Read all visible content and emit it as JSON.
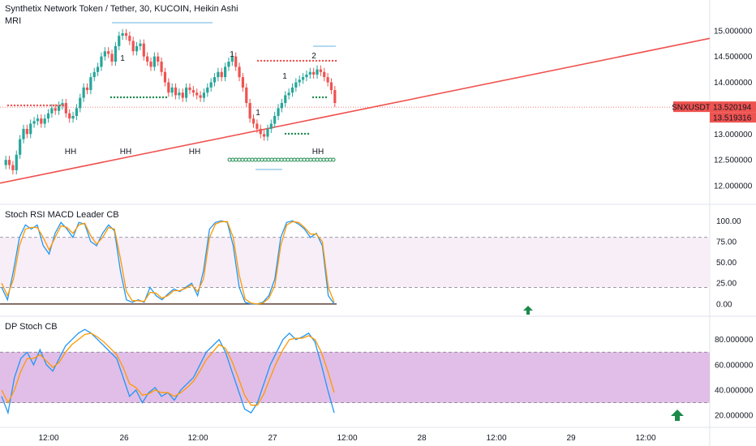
{
  "header": {
    "title": "Synthetix Network Token / Tether, 30, KUCOIN, Heikin Ashi",
    "indicator": "MRI"
  },
  "colors": {
    "up": "#26a69a",
    "down": "#ef5350",
    "trendline": "#ef5350",
    "rsi_k": "#2196f3",
    "rsi_d": "#ff9800",
    "dp_band": "#e1bee7",
    "arrow": "#1b8a4b",
    "marker_red": "#ef5350",
    "marker_green": "#1b8a4b",
    "light_blue": "#b3d9f2"
  },
  "chart_data": [
    {
      "type": "candlestick",
      "title": "Synthetix Network Token / Tether, 30, KUCOIN, Heikin Ashi",
      "symbol": "SNXUSDT",
      "ylim": [
        11.75,
        15.2
      ],
      "yticks": [
        "15.000000",
        "14.500000",
        "14.000000",
        "13.500000",
        "13.000000",
        "12.500000",
        "12.000000"
      ],
      "price_tag": "13.520194",
      "price_tag2": "13.519316",
      "price_value": 13.52,
      "trendline": {
        "start": 12.05,
        "end": 14.85
      },
      "labels": [
        "HH",
        "HH",
        "HH",
        "HH",
        "1",
        "1",
        "1",
        "1",
        "2"
      ],
      "closes": [
        12.5,
        12.4,
        12.3,
        12.6,
        12.9,
        13.1,
        13.0,
        13.2,
        13.25,
        13.3,
        13.2,
        13.3,
        13.4,
        13.5,
        13.45,
        13.55,
        13.6,
        13.4,
        13.3,
        13.35,
        13.5,
        13.7,
        13.9,
        13.85,
        14.1,
        14.2,
        14.3,
        14.5,
        14.6,
        14.55,
        14.4,
        14.7,
        14.9,
        14.95,
        14.9,
        14.8,
        14.6,
        14.7,
        14.75,
        14.5,
        14.4,
        14.3,
        14.5,
        14.4,
        14.2,
        14.0,
        13.8,
        13.9,
        13.75,
        13.8,
        13.7,
        13.9,
        13.85,
        13.8,
        13.75,
        13.7,
        13.8,
        13.9,
        14.0,
        14.1,
        14.2,
        14.1,
        14.3,
        14.4,
        14.5,
        14.3,
        14.1,
        13.9,
        13.6,
        13.3,
        13.2,
        13.1,
        13.0,
        12.95,
        13.1,
        13.2,
        13.35,
        13.5,
        13.6,
        13.75,
        13.8,
        13.9,
        14.0,
        14.05,
        14.1,
        14.15,
        14.2,
        14.15,
        14.25,
        14.2,
        14.1,
        14.0,
        13.85,
        13.6
      ]
    },
    {
      "type": "line",
      "title": "Stoch RSI MACD Leader CB",
      "ylim": [
        -5,
        110
      ],
      "yticks": [
        "100.00",
        "75.00",
        "50.00",
        "25.00",
        "0.00"
      ],
      "levels": [
        80,
        20
      ],
      "series": [
        {
          "color": "#2196f3",
          "values": [
            20,
            5,
            40,
            80,
            95,
            90,
            95,
            70,
            60,
            85,
            98,
            90,
            80,
            98,
            96,
            75,
            70,
            85,
            95,
            88,
            40,
            5,
            2,
            5,
            2,
            20,
            10,
            5,
            12,
            18,
            15,
            20,
            25,
            10,
            40,
            90,
            98,
            100,
            98,
            70,
            20,
            2,
            0,
            0,
            2,
            10,
            30,
            80,
            98,
            100,
            96,
            90,
            80,
            85,
            70,
            10,
            0
          ]
        },
        {
          "color": "#ff9800",
          "values": [
            25,
            10,
            30,
            70,
            90,
            92,
            92,
            80,
            65,
            80,
            94,
            92,
            85,
            95,
            97,
            82,
            72,
            80,
            92,
            90,
            55,
            15,
            4,
            4,
            3,
            14,
            13,
            7,
            10,
            16,
            16,
            19,
            23,
            15,
            30,
            80,
            96,
            99,
            99,
            80,
            35,
            6,
            1,
            0,
            1,
            7,
            22,
            70,
            95,
            99,
            98,
            92,
            84,
            84,
            75,
            20,
            2
          ]
        }
      ]
    },
    {
      "type": "line",
      "title": "DP Stoch CB",
      "ylim": [
        15,
        92
      ],
      "yticks": [
        "80.000000",
        "60.000000",
        "40.000000",
        "20.000000"
      ],
      "band": [
        30,
        70
      ],
      "series": [
        {
          "color": "#2196f3",
          "values": [
            35,
            22,
            50,
            65,
            70,
            60,
            72,
            60,
            55,
            65,
            75,
            80,
            85,
            88,
            85,
            80,
            75,
            70,
            65,
            50,
            35,
            40,
            30,
            38,
            42,
            35,
            38,
            32,
            40,
            45,
            50,
            60,
            70,
            75,
            80,
            70,
            55,
            40,
            25,
            22,
            30,
            45,
            60,
            70,
            80,
            85,
            80,
            82,
            85,
            78,
            60,
            40,
            22
          ]
        },
        {
          "color": "#ff9800",
          "values": [
            40,
            30,
            40,
            55,
            65,
            65,
            68,
            63,
            58,
            62,
            70,
            76,
            80,
            84,
            85,
            82,
            78,
            73,
            68,
            58,
            45,
            42,
            36,
            37,
            40,
            38,
            38,
            35,
            38,
            42,
            47,
            55,
            64,
            70,
            76,
            73,
            63,
            50,
            36,
            28,
            28,
            37,
            50,
            62,
            72,
            80,
            81,
            81,
            83,
            80,
            70,
            55,
            38
          ]
        }
      ]
    }
  ],
  "xaxis": [
    "12:00",
    "26",
    "12:00",
    "27",
    "12:00",
    "28",
    "12:00",
    "29",
    "12:00"
  ]
}
